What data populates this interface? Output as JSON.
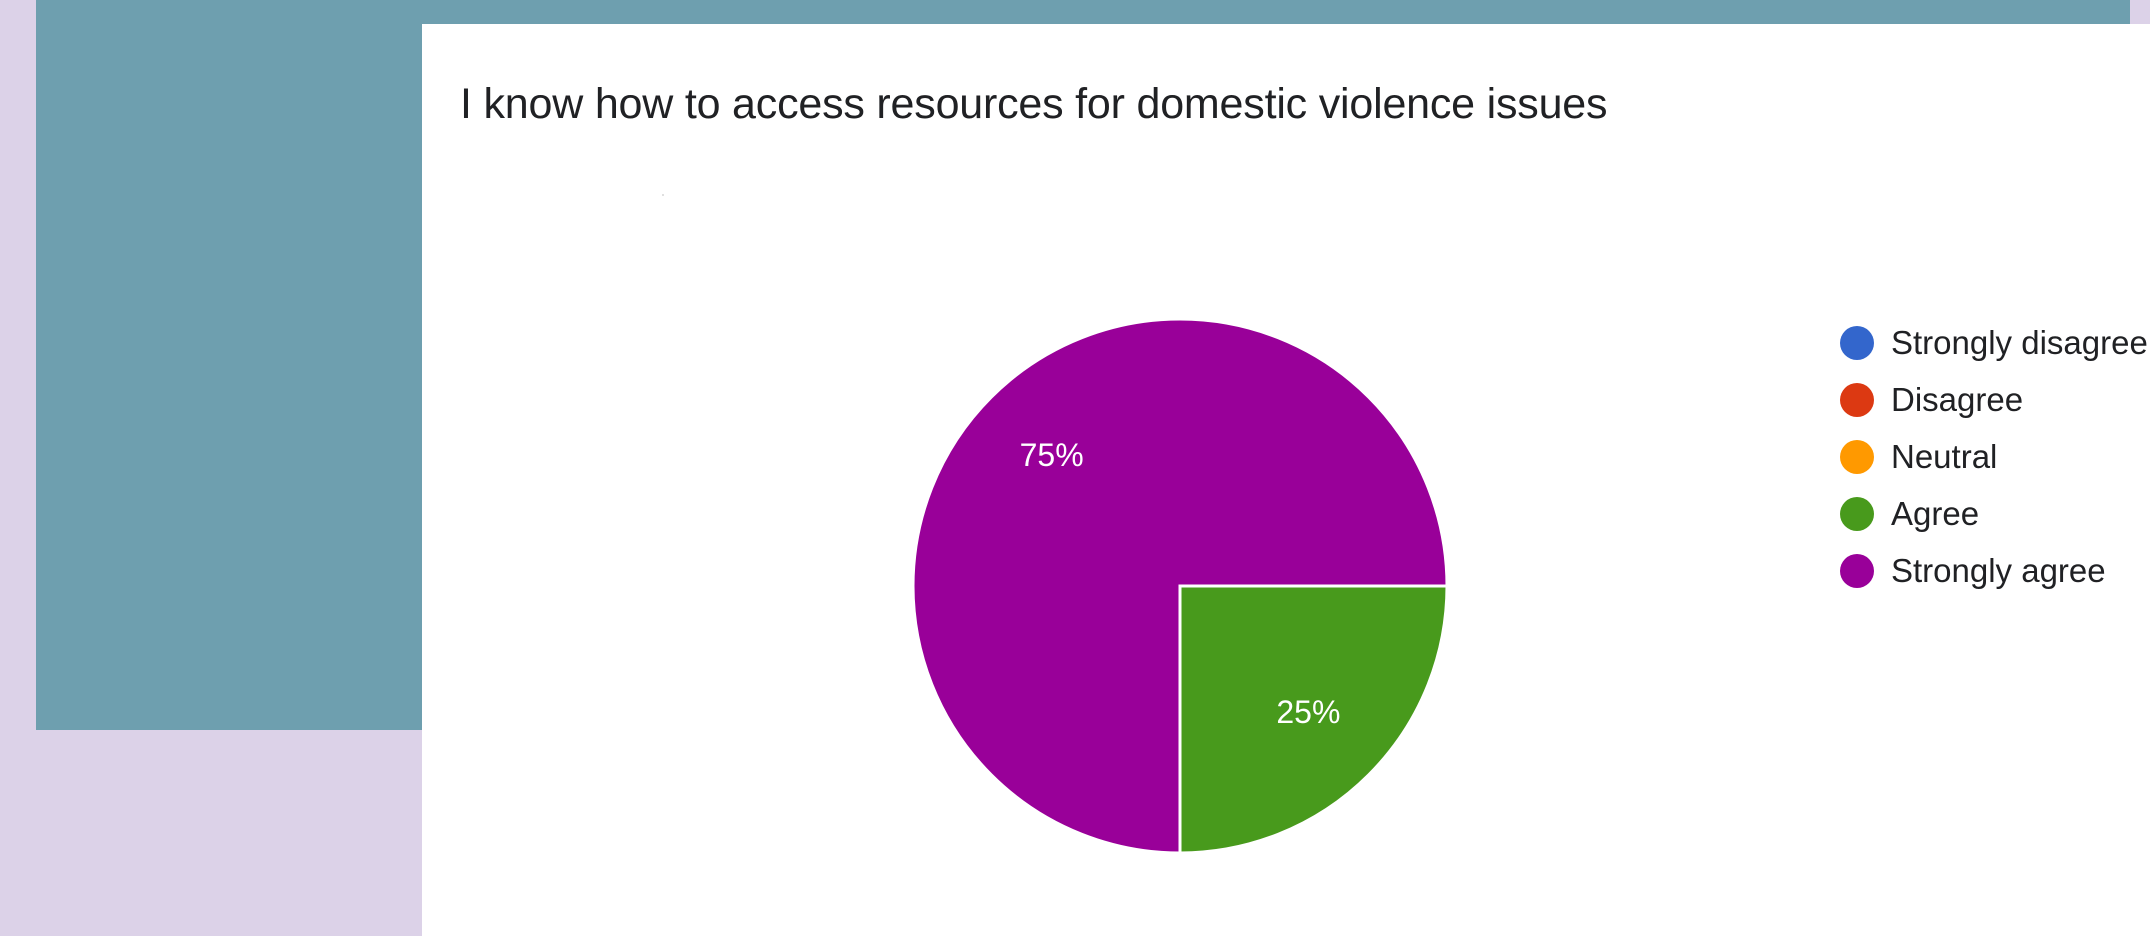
{
  "chart_data": {
    "type": "pie",
    "title": "I know how to access resources for domestic violence issues",
    "categories": [
      "Strongly disagree",
      "Disagree",
      "Neutral",
      "Agree",
      "Strongly agree"
    ],
    "values": [
      0,
      0,
      0,
      25,
      75
    ],
    "colors": [
      "#3366cc",
      "#dc3912",
      "#ff9900",
      "#489a1c",
      "#990099"
    ],
    "slice_labels": [
      "",
      "",
      "",
      "25%",
      "75%"
    ],
    "legend_position": "right"
  }
}
